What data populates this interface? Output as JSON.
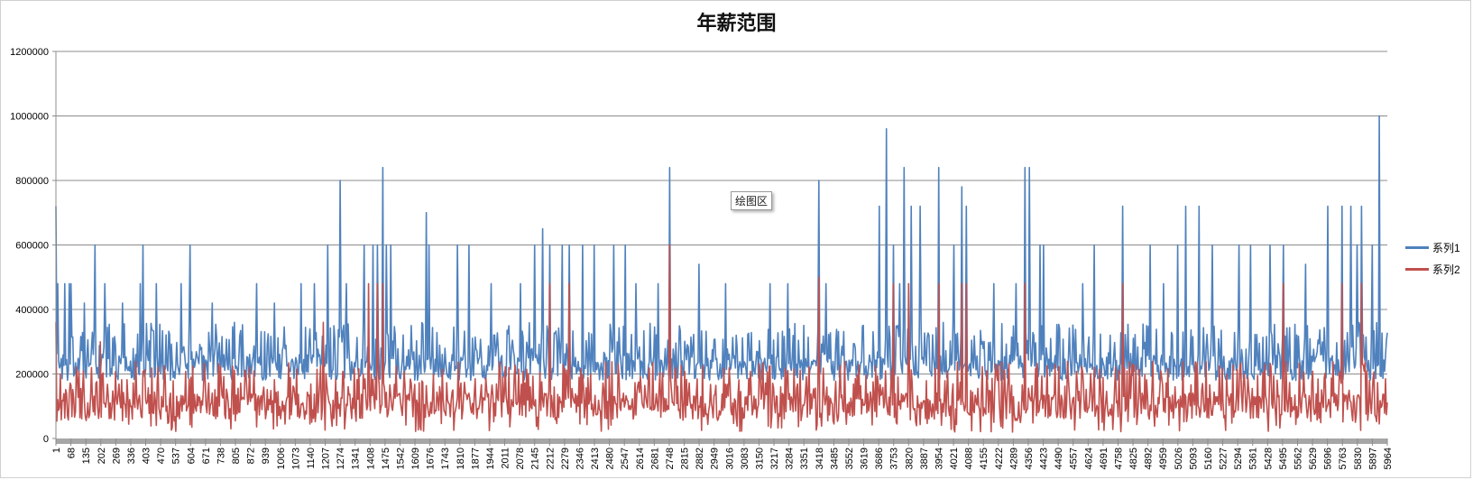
{
  "chart_data": {
    "type": "line",
    "title": "年薪范围",
    "xlabel": "",
    "ylabel": "",
    "ylim": [
      0,
      1200000
    ],
    "y_ticks": [
      "0",
      "200000",
      "400000",
      "600000",
      "800000",
      "1000000",
      "1200000"
    ],
    "x_ticks": [
      "1",
      "68",
      "135",
      "202",
      "269",
      "336",
      "403",
      "470",
      "537",
      "604",
      "671",
      "738",
      "805",
      "872",
      "939",
      "1006",
      "1073",
      "1140",
      "1207",
      "1274",
      "1341",
      "1408",
      "1475",
      "1542",
      "1609",
      "1676",
      "1743",
      "1810",
      "1877",
      "1944",
      "2011",
      "2078",
      "2145",
      "2212",
      "2279",
      "2346",
      "2413",
      "2480",
      "2547",
      "2614",
      "2681",
      "2748",
      "2815",
      "2882",
      "2949",
      "3016",
      "3083",
      "3150",
      "3217",
      "3284",
      "3351",
      "3418",
      "3485",
      "3552",
      "3619",
      "3686",
      "3753",
      "3820",
      "3887",
      "3954",
      "4021",
      "4088",
      "4155",
      "4222",
      "4289",
      "4356",
      "4423",
      "4490",
      "4557",
      "4624",
      "4691",
      "4758",
      "4825",
      "4892",
      "4959",
      "5026",
      "5093",
      "5160",
      "5227",
      "5294",
      "5361",
      "5428",
      "5495",
      "5562",
      "5629",
      "5696",
      "5763",
      "5830",
      "5897",
      "5964"
    ],
    "x_range": [
      1,
      5964
    ],
    "grid": "horizontal",
    "legend_position": "right",
    "series": [
      {
        "name": "系列1",
        "color": "#4F81BD",
        "base_low": 180000,
        "base_high": 360000,
        "spikes": [
          [
            1,
            720000
          ],
          [
            10,
            480000
          ],
          [
            40,
            480000
          ],
          [
            60,
            480000
          ],
          [
            70,
            480000
          ],
          [
            130,
            420000
          ],
          [
            175,
            600000
          ],
          [
            220,
            480000
          ],
          [
            300,
            420000
          ],
          [
            380,
            480000
          ],
          [
            390,
            600000
          ],
          [
            450,
            480000
          ],
          [
            560,
            480000
          ],
          [
            600,
            600000
          ],
          [
            700,
            420000
          ],
          [
            800,
            360000
          ],
          [
            900,
            480000
          ],
          [
            980,
            420000
          ],
          [
            1100,
            480000
          ],
          [
            1160,
            480000
          ],
          [
            1220,
            600000
          ],
          [
            1274,
            800000
          ],
          [
            1300,
            480000
          ],
          [
            1380,
            600000
          ],
          [
            1420,
            600000
          ],
          [
            1440,
            600000
          ],
          [
            1466,
            840000
          ],
          [
            1480,
            600000
          ],
          [
            1500,
            600000
          ],
          [
            1660,
            700000
          ],
          [
            1670,
            600000
          ],
          [
            1800,
            600000
          ],
          [
            1850,
            600000
          ],
          [
            1950,
            480000
          ],
          [
            2080,
            480000
          ],
          [
            2145,
            600000
          ],
          [
            2180,
            650000
          ],
          [
            2212,
            600000
          ],
          [
            2270,
            600000
          ],
          [
            2300,
            600000
          ],
          [
            2360,
            600000
          ],
          [
            2413,
            600000
          ],
          [
            2500,
            600000
          ],
          [
            2550,
            600000
          ],
          [
            2600,
            480000
          ],
          [
            2700,
            480000
          ],
          [
            2750,
            840000
          ],
          [
            2880,
            540000
          ],
          [
            3000,
            480000
          ],
          [
            3200,
            480000
          ],
          [
            3280,
            480000
          ],
          [
            3420,
            800000
          ],
          [
            3450,
            480000
          ],
          [
            3690,
            720000
          ],
          [
            3720,
            960000
          ],
          [
            3753,
            600000
          ],
          [
            3780,
            480000
          ],
          [
            3800,
            840000
          ],
          [
            3830,
            720000
          ],
          [
            3870,
            720000
          ],
          [
            3954,
            840000
          ],
          [
            4021,
            600000
          ],
          [
            4060,
            780000
          ],
          [
            4080,
            720000
          ],
          [
            4200,
            480000
          ],
          [
            4300,
            480000
          ],
          [
            4340,
            840000
          ],
          [
            4360,
            840000
          ],
          [
            4410,
            600000
          ],
          [
            4423,
            600000
          ],
          [
            4600,
            480000
          ],
          [
            4650,
            600000
          ],
          [
            4780,
            720000
          ],
          [
            4900,
            600000
          ],
          [
            4960,
            480000
          ],
          [
            5026,
            600000
          ],
          [
            5060,
            720000
          ],
          [
            5120,
            720000
          ],
          [
            5180,
            600000
          ],
          [
            5300,
            600000
          ],
          [
            5350,
            600000
          ],
          [
            5440,
            600000
          ],
          [
            5500,
            600000
          ],
          [
            5600,
            540000
          ],
          [
            5696,
            720000
          ],
          [
            5760,
            720000
          ],
          [
            5800,
            720000
          ],
          [
            5830,
            600000
          ],
          [
            5850,
            720000
          ],
          [
            5897,
            600000
          ],
          [
            5930,
            1000000
          ]
        ]
      },
      {
        "name": "系列2",
        "color": "#C0504D",
        "base_low": 60000,
        "base_high": 240000,
        "spikes": [
          [
            1,
            360000
          ],
          [
            200,
            300000
          ],
          [
            600,
            300000
          ],
          [
            1200,
            360000
          ],
          [
            1400,
            480000
          ],
          [
            1440,
            480000
          ],
          [
            1466,
            480000
          ],
          [
            2212,
            480000
          ],
          [
            2300,
            480000
          ],
          [
            2750,
            600000
          ],
          [
            3420,
            500000
          ],
          [
            3753,
            480000
          ],
          [
            3820,
            480000
          ],
          [
            3870,
            480000
          ],
          [
            3954,
            480000
          ],
          [
            4060,
            480000
          ],
          [
            4080,
            480000
          ],
          [
            4340,
            480000
          ],
          [
            4780,
            480000
          ],
          [
            5500,
            480000
          ],
          [
            5760,
            480000
          ],
          [
            5850,
            480000
          ],
          [
            5930,
            800000
          ]
        ]
      }
    ]
  },
  "tooltip": {
    "label": "绘图区"
  }
}
